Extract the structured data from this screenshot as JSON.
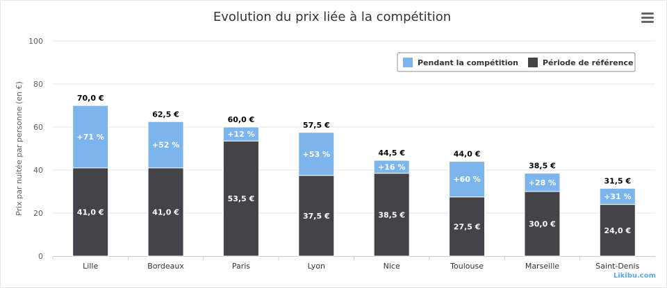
{
  "chart_data": {
    "type": "bar",
    "stacked": true,
    "title": "Evolution du prix liée à la compétition",
    "ylabel": "Prix par nuitée par personne (en €)",
    "ylim": [
      0,
      100
    ],
    "yticks": [
      "0",
      "20",
      "40",
      "60",
      "80",
      "100"
    ],
    "grid": true,
    "legend_position": "top-right",
    "categories": [
      "Lille",
      "Bordeaux",
      "Paris",
      "Lyon",
      "Nice",
      "Toulouse",
      "Marseille",
      "Saint-Denis"
    ],
    "series": [
      {
        "name": "Période de référence",
        "color": "#434348",
        "values": [
          41.0,
          41.0,
          53.5,
          37.5,
          38.5,
          27.5,
          30.0,
          24.0
        ],
        "labels": [
          "41,0 €",
          "41,0 €",
          "53,5 €",
          "37,5 €",
          "38,5 €",
          "27,5 €",
          "30,0 €",
          "24,0 €"
        ]
      },
      {
        "name": "Pendant la compétition",
        "color": "#7cb5ec",
        "values": [
          29.0,
          21.5,
          6.5,
          20.0,
          6.0,
          16.5,
          8.5,
          7.5
        ],
        "labels": [
          "+71 %",
          "+52 %",
          "+12 %",
          "+53 %",
          "+16 %",
          "+60 %",
          "+28 %",
          "+31 %"
        ]
      }
    ],
    "totals": [
      "70,0 €",
      "62,5 €",
      "60,0 €",
      "57,5 €",
      "44,5 €",
      "44,0 €",
      "38,5 €",
      "31,5 €"
    ]
  },
  "credit": "Likibu.com",
  "menu_icon": "hamburger-menu-icon"
}
